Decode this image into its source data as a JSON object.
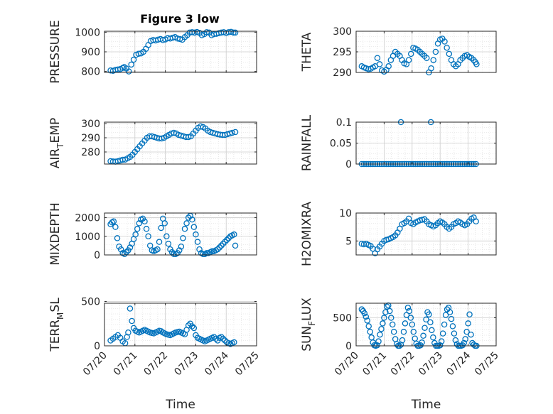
{
  "figure": {
    "title": "Figure 3 low"
  },
  "style": {
    "marker_color": "#0072bd",
    "axis_color": "#262626",
    "grid_color": "#d9d9d9"
  },
  "chart_data": [
    {
      "type": "scatter",
      "ylabel_main": "PRESSURE",
      "ylabel_sub": "",
      "ylabel_rest": "",
      "xlabel": "",
      "xlim": [
        "07/20",
        "07/25"
      ],
      "ylim": [
        795,
        1005
      ],
      "yticks": [
        800,
        900,
        1000
      ],
      "xticks": [
        "07/20",
        "07/21",
        "07/22",
        "07/23",
        "07/24",
        "07/25"
      ],
      "grid": "minor-dotted",
      "x_days": [
        0.2,
        0.28,
        0.36,
        0.44,
        0.52,
        0.6,
        0.65,
        0.72,
        0.8,
        0.88,
        0.96,
        1.04,
        1.12,
        1.2,
        1.28,
        1.36,
        1.44,
        1.52,
        1.6,
        1.68,
        1.76,
        1.84,
        1.92,
        2.0,
        2.08,
        2.16,
        2.24,
        2.32,
        2.4,
        2.48,
        2.56,
        2.64,
        2.72,
        2.8,
        2.88,
        2.96,
        3.04,
        3.12,
        3.2,
        3.28,
        3.36,
        3.44,
        3.52,
        3.6,
        3.68,
        3.76,
        3.84,
        3.92,
        4.0,
        4.08,
        4.16,
        4.24,
        4.3
      ],
      "y": [
        805,
        803,
        808,
        810,
        812,
        818,
        822,
        815,
        800,
        835,
        860,
        885,
        890,
        892,
        900,
        915,
        935,
        955,
        960,
        958,
        962,
        965,
        960,
        963,
        970,
        968,
        972,
        975,
        968,
        965,
        962,
        975,
        985,
        998,
        1000,
        998,
        1001,
        997,
        985,
        990,
        1000,
        998,
        985,
        990,
        992,
        995,
        998,
        1000,
        996,
        1000,
        1002,
        998,
        998
      ]
    },
    {
      "type": "scatter",
      "ylabel_main": "THETA",
      "ylabel_sub": "",
      "ylabel_rest": "",
      "xlabel": "",
      "xlim": [
        "07/20",
        "07/25"
      ],
      "ylim": [
        290,
        300
      ],
      "yticks": [
        290,
        295,
        300
      ],
      "xticks": [
        "07/20",
        "07/21",
        "07/22",
        "07/23",
        "07/24",
        "07/25"
      ],
      "grid": "minor-dotted",
      "x_days": [
        0.2,
        0.28,
        0.36,
        0.44,
        0.52,
        0.6,
        0.68,
        0.76,
        0.84,
        0.92,
        1.0,
        1.08,
        1.16,
        1.24,
        1.32,
        1.4,
        1.48,
        1.56,
        1.64,
        1.72,
        1.8,
        1.88,
        1.96,
        2.04,
        2.12,
        2.2,
        2.28,
        2.36,
        2.44,
        2.52,
        2.6,
        2.68,
        2.76,
        2.84,
        2.92,
        3.0,
        3.08,
        3.16,
        3.24,
        3.32,
        3.4,
        3.48,
        3.56,
        3.64,
        3.72,
        3.8,
        3.88,
        3.96,
        4.04,
        4.12,
        4.2,
        4.26,
        4.3
      ],
      "y": [
        291.5,
        291.2,
        291,
        290.8,
        290.9,
        291.2,
        291.5,
        293.5,
        292,
        290.5,
        290.2,
        290.6,
        291.5,
        293,
        294,
        295,
        294.5,
        294,
        293,
        292.2,
        292,
        293,
        294.5,
        296,
        295.8,
        295.5,
        295,
        294.5,
        294,
        293.5,
        290,
        291,
        293,
        295,
        297,
        298,
        298.2,
        297.5,
        296,
        294.5,
        293,
        292,
        291.5,
        292,
        293,
        293.5,
        294,
        294.2,
        293.8,
        293.5,
        293,
        292.5,
        292
      ]
    },
    {
      "type": "scatter",
      "ylabel_main": "AIR",
      "ylabel_sub": "T",
      "ylabel_rest": "EMP",
      "xlabel": "",
      "xlim": [
        "07/20",
        "07/25"
      ],
      "ylim": [
        271.5,
        301
      ],
      "yticks": [
        280,
        290,
        300
      ],
      "xticks": [
        "07/20",
        "07/21",
        "07/22",
        "07/23",
        "07/24",
        "07/25"
      ],
      "grid": "minor-dotted",
      "x_days": [
        0.2,
        0.28,
        0.36,
        0.44,
        0.52,
        0.6,
        0.68,
        0.76,
        0.84,
        0.92,
        1.0,
        1.08,
        1.16,
        1.24,
        1.32,
        1.4,
        1.48,
        1.56,
        1.64,
        1.72,
        1.8,
        1.88,
        1.96,
        2.04,
        2.12,
        2.2,
        2.28,
        2.36,
        2.44,
        2.52,
        2.6,
        2.68,
        2.76,
        2.84,
        2.92,
        3.0,
        3.08,
        3.16,
        3.24,
        3.32,
        3.4,
        3.48,
        3.56,
        3.64,
        3.72,
        3.8,
        3.88,
        3.96,
        4.04,
        4.12,
        4.2,
        4.3
      ],
      "y": [
        273.5,
        273.3,
        273.2,
        273.5,
        274,
        274.5,
        274.6,
        275.5,
        276.5,
        278,
        280,
        282,
        284,
        286,
        288,
        290,
        291,
        291,
        290.5,
        290,
        289.5,
        289.5,
        290,
        291,
        292,
        293,
        293.5,
        293,
        292,
        291.5,
        291,
        290.5,
        290.5,
        291,
        293,
        295,
        297,
        298,
        297.5,
        296.5,
        295,
        294,
        293.5,
        293,
        292.5,
        292.2,
        292,
        292,
        292.5,
        293,
        293.5,
        294
      ]
    },
    {
      "type": "scatter",
      "ylabel_main": "RAINFALL",
      "ylabel_sub": "",
      "ylabel_rest": "",
      "xlabel": "",
      "xlim": [
        "07/20",
        "07/25"
      ],
      "ylim": [
        0,
        0.1
      ],
      "yticks": [
        0,
        0.05,
        0.1
      ],
      "xticks": [
        "07/20",
        "07/21",
        "07/22",
        "07/23",
        "07/24",
        "07/25"
      ],
      "grid": "minor-dotted",
      "x_days": [
        0.2,
        0.28,
        0.36,
        0.44,
        0.52,
        0.6,
        0.68,
        0.76,
        0.84,
        0.92,
        1.0,
        1.08,
        1.16,
        1.24,
        1.32,
        1.4,
        1.48,
        1.56,
        1.64,
        1.72,
        1.8,
        1.88,
        1.96,
        2.04,
        2.12,
        2.2,
        2.28,
        2.36,
        2.44,
        2.52,
        2.6,
        2.68,
        2.76,
        2.84,
        2.92,
        3.0,
        3.08,
        3.16,
        3.24,
        3.32,
        3.4,
        3.48,
        3.56,
        3.64,
        3.72,
        3.8,
        3.88,
        3.96,
        4.04,
        4.12,
        4.2,
        4.28,
        1.6,
        2.67
      ],
      "y": [
        0,
        0,
        0,
        0,
        0,
        0,
        0,
        0,
        0,
        0,
        0,
        0,
        0,
        0,
        0,
        0,
        0,
        0,
        0,
        0,
        0,
        0,
        0,
        0,
        0,
        0,
        0,
        0,
        0,
        0,
        0,
        0,
        0,
        0,
        0,
        0,
        0,
        0,
        0,
        0,
        0,
        0,
        0,
        0,
        0,
        0,
        0,
        0,
        0,
        0,
        0,
        0,
        0.1,
        0.1
      ]
    },
    {
      "type": "scatter",
      "ylabel_main": "MIXDEPTH",
      "ylabel_sub": "",
      "ylabel_rest": "",
      "xlabel": "",
      "xlim": [
        "07/20",
        "07/25"
      ],
      "ylim": [
        0,
        2250
      ],
      "yticks": [
        0,
        1000,
        2000
      ],
      "xticks": [
        "07/20",
        "07/21",
        "07/22",
        "07/23",
        "07/24",
        "07/25"
      ],
      "grid": "minor-dotted",
      "x_days": [
        0.2,
        0.25,
        0.3,
        0.36,
        0.42,
        0.48,
        0.54,
        0.6,
        0.66,
        0.72,
        0.78,
        0.84,
        0.9,
        0.96,
        1.02,
        1.08,
        1.14,
        1.2,
        1.26,
        1.32,
        1.38,
        1.44,
        1.5,
        1.56,
        1.62,
        1.68,
        1.74,
        1.8,
        1.86,
        1.92,
        1.98,
        2.04,
        2.1,
        2.16,
        2.22,
        2.28,
        2.34,
        2.4,
        2.46,
        2.52,
        2.58,
        2.64,
        2.7,
        2.76,
        2.82,
        2.88,
        2.94,
        3.0,
        3.06,
        3.12,
        3.18,
        3.24,
        3.3,
        3.36,
        3.42,
        3.48,
        3.54,
        3.6,
        3.66,
        3.72,
        3.78,
        3.84,
        3.9,
        3.96,
        4.02,
        4.08,
        4.14,
        4.2,
        4.26,
        4.3
      ],
      "y": [
        1650,
        1750,
        1800,
        1500,
        900,
        450,
        300,
        100,
        50,
        150,
        250,
        400,
        600,
        850,
        1100,
        1400,
        1700,
        1900,
        1950,
        1800,
        1400,
        1000,
        500,
        250,
        200,
        250,
        300,
        700,
        1450,
        1950,
        1700,
        1000,
        600,
        300,
        150,
        50,
        50,
        100,
        250,
        450,
        900,
        1400,
        1700,
        2000,
        2100,
        1900,
        1500,
        1100,
        700,
        300,
        100,
        50,
        50,
        100,
        100,
        150,
        200,
        200,
        250,
        300,
        400,
        500,
        600,
        700,
        800,
        900,
        1000,
        1050,
        1100,
        500
      ]
    },
    {
      "type": "scatter",
      "ylabel_main": "H2OMIXRA",
      "ylabel_sub": "",
      "ylabel_rest": "",
      "xlabel": "",
      "xlim": [
        "07/20",
        "07/25"
      ],
      "ylim": [
        2.5,
        10
      ],
      "yticks": [
        5,
        10
      ],
      "xticks": [
        "07/20",
        "07/21",
        "07/22",
        "07/23",
        "07/24",
        "07/25"
      ],
      "grid": "minor-dotted",
      "x_days": [
        0.2,
        0.28,
        0.36,
        0.44,
        0.52,
        0.6,
        0.68,
        0.76,
        0.84,
        0.92,
        1.0,
        1.08,
        1.16,
        1.24,
        1.32,
        1.4,
        1.48,
        1.56,
        1.64,
        1.72,
        1.8,
        1.88,
        1.96,
        2.04,
        2.12,
        2.2,
        2.28,
        2.36,
        2.44,
        2.52,
        2.6,
        2.68,
        2.76,
        2.84,
        2.92,
        3.0,
        3.08,
        3.16,
        3.24,
        3.32,
        3.4,
        3.48,
        3.56,
        3.64,
        3.72,
        3.8,
        3.88,
        3.96,
        4.04,
        4.12,
        4.2,
        4.28
      ],
      "y": [
        4.5,
        4.4,
        4.5,
        4.3,
        4.1,
        3.6,
        2.8,
        3.5,
        4.0,
        4.5,
        5.0,
        5.2,
        5.3,
        5.5,
        5.7,
        6.0,
        6.5,
        7.2,
        8.0,
        8.2,
        8.5,
        9.0,
        8.2,
        8.0,
        8.3,
        8.5,
        8.7,
        8.8,
        8.9,
        8.5,
        8.0,
        7.8,
        7.6,
        7.8,
        8.2,
        8.5,
        8.3,
        8.0,
        7.5,
        7.2,
        7.5,
        8.0,
        8.2,
        8.5,
        8.3,
        8.0,
        7.8,
        8.0,
        8.5,
        9.0,
        9.2,
        8.5
      ]
    },
    {
      "type": "scatter",
      "ylabel_main": "TERR",
      "ylabel_sub": "M",
      "ylabel_rest": "SL",
      "xlabel": "Time",
      "xlim": [
        "07/20",
        "07/25"
      ],
      "ylim": [
        0,
        480
      ],
      "yticks": [
        0,
        500
      ],
      "xticks": [
        "07/20",
        "07/21",
        "07/22",
        "07/23",
        "07/24",
        "07/25"
      ],
      "grid": "minor-dotted",
      "x_days": [
        0.2,
        0.28,
        0.36,
        0.44,
        0.52,
        0.6,
        0.68,
        0.74,
        0.78,
        0.84,
        0.9,
        0.96,
        1.02,
        1.08,
        1.14,
        1.2,
        1.26,
        1.32,
        1.38,
        1.44,
        1.5,
        1.56,
        1.62,
        1.68,
        1.74,
        1.8,
        1.86,
        1.92,
        1.98,
        2.04,
        2.1,
        2.16,
        2.22,
        2.28,
        2.34,
        2.4,
        2.46,
        2.52,
        2.58,
        2.64,
        2.7,
        2.76,
        2.82,
        2.88,
        2.94,
        3.0,
        3.06,
        3.12,
        3.18,
        3.24,
        3.3,
        3.36,
        3.42,
        3.48,
        3.54,
        3.6,
        3.66,
        3.72,
        3.78,
        3.84,
        3.9,
        3.96,
        4.02,
        4.08,
        4.14,
        4.2,
        4.26
      ],
      "y": [
        60,
        80,
        100,
        120,
        90,
        50,
        30,
        100,
        150,
        420,
        280,
        200,
        170,
        160,
        150,
        160,
        170,
        180,
        170,
        160,
        150,
        145,
        140,
        150,
        160,
        170,
        165,
        150,
        140,
        130,
        125,
        120,
        130,
        140,
        150,
        155,
        160,
        150,
        140,
        130,
        180,
        230,
        250,
        220,
        200,
        120,
        90,
        80,
        70,
        60,
        50,
        60,
        70,
        80,
        90,
        100,
        80,
        60,
        90,
        100,
        80,
        60,
        40,
        30,
        20,
        30,
        40
      ]
    },
    {
      "type": "scatter",
      "ylabel_main": "SUN",
      "ylabel_sub": "F",
      "ylabel_rest": "LUX",
      "xlabel": "Time",
      "xlim": [
        "07/20",
        "07/25"
      ],
      "ylim": [
        0,
        760
      ],
      "yticks": [
        0,
        500
      ],
      "xticks": [
        "07/20",
        "07/21",
        "07/22",
        "07/23",
        "07/24",
        "07/25"
      ],
      "grid": "minor-dotted",
      "x_days": [
        0.2,
        0.25,
        0.3,
        0.35,
        0.4,
        0.45,
        0.5,
        0.55,
        0.6,
        0.65,
        0.7,
        0.75,
        0.8,
        0.85,
        0.9,
        0.95,
        1.0,
        1.05,
        1.1,
        1.15,
        1.2,
        1.25,
        1.3,
        1.35,
        1.4,
        1.45,
        1.5,
        1.55,
        1.6,
        1.65,
        1.7,
        1.75,
        1.8,
        1.85,
        1.9,
        1.95,
        2.0,
        2.05,
        2.1,
        2.15,
        2.2,
        2.25,
        2.3,
        2.35,
        2.4,
        2.45,
        2.5,
        2.55,
        2.6,
        2.65,
        2.7,
        2.75,
        2.8,
        2.85,
        2.9,
        2.95,
        3.0,
        3.05,
        3.1,
        3.15,
        3.2,
        3.25,
        3.3,
        3.35,
        3.4,
        3.45,
        3.5,
        3.55,
        3.6,
        3.65,
        3.7,
        3.75,
        3.8,
        3.85,
        3.9,
        3.95,
        4.0,
        4.05,
        4.1,
        4.15,
        4.2,
        4.25,
        4.3
      ],
      "y": [
        650,
        620,
        580,
        520,
        450,
        350,
        250,
        150,
        60,
        10,
        0,
        10,
        80,
        200,
        300,
        400,
        500,
        600,
        700,
        720,
        620,
        500,
        380,
        250,
        120,
        30,
        0,
        0,
        20,
        100,
        250,
        400,
        550,
        680,
        620,
        500,
        380,
        250,
        130,
        40,
        0,
        0,
        10,
        60,
        180,
        320,
        470,
        600,
        560,
        420,
        280,
        150,
        50,
        0,
        0,
        0,
        10,
        80,
        220,
        380,
        550,
        650,
        680,
        600,
        480,
        350,
        220,
        100,
        30,
        0,
        0,
        0,
        10,
        50,
        120,
        250,
        400,
        560,
        200,
        50,
        20,
        0,
        0
      ]
    }
  ]
}
